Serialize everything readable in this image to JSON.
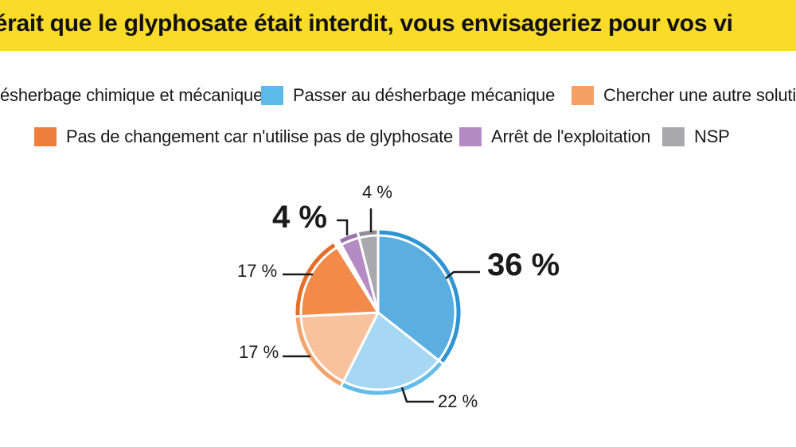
{
  "header": {
    "title": "avérait que le glyphosate était interdit, vous envisageriez pour vos vi"
  },
  "colors": {
    "title_bar": "#f9db2a"
  },
  "legend": [
    {
      "label": "ésherbage chimique et mécanique",
      "color": "#f6b98d"
    },
    {
      "label": "Passer au désherbage mécanique",
      "color": "#5bbbe6"
    },
    {
      "label": "Chercher une autre solutio",
      "color": "#f4a067"
    },
    {
      "label": "Pas de changement car n'utilise pas de glyphosate",
      "color": "#ef7d3c"
    },
    {
      "label": "Arrêt de l'exploitation",
      "color": "#b58bc4"
    },
    {
      "label": "NSP",
      "color": "#a9a9ad"
    }
  ],
  "chart_data": {
    "type": "pie",
    "title": "avérait que le glyphosate était interdit, vous envisageriez pour vos vi",
    "start_angle_deg": 0,
    "direction": "clockwise",
    "slices": [
      {
        "label": "Passer au désherbage mécanique (blue)",
        "value": 36,
        "display": "36 %",
        "color": "#5aaee0",
        "rim": "#2f95d2"
      },
      {
        "label": "Light blue slice",
        "value": 22,
        "display": "22 %",
        "color": "#a6d8f3",
        "rim": "#63bce9"
      },
      {
        "label": "Light orange slice",
        "value": 17,
        "display": "17 %",
        "color": "#f8c29d",
        "rim": "#f3a36c"
      },
      {
        "label": "Pas de changement car n'utilise pas de glyphosate",
        "value": 17,
        "display": "17 %",
        "color": "#f28a49",
        "rim": "#e56f2a"
      },
      {
        "label": "White slice",
        "value": 0,
        "display": "",
        "color": "#ffffff",
        "rim": "#ffffff"
      },
      {
        "label": "Arrêt de l'exploitation",
        "value": 4,
        "display": "4 %",
        "color": "#b58bc4",
        "rim": "#9d73b0"
      },
      {
        "label": "NSP",
        "value": 4,
        "display": "4 %",
        "color": "#a9a9ad",
        "rim": "#8e8e92"
      }
    ]
  },
  "labels": {
    "p36": "36 %",
    "p22": "22 %",
    "p17a": "17 %",
    "p17b": "17 %",
    "p4a": "4 %",
    "p4b": "4 %"
  }
}
